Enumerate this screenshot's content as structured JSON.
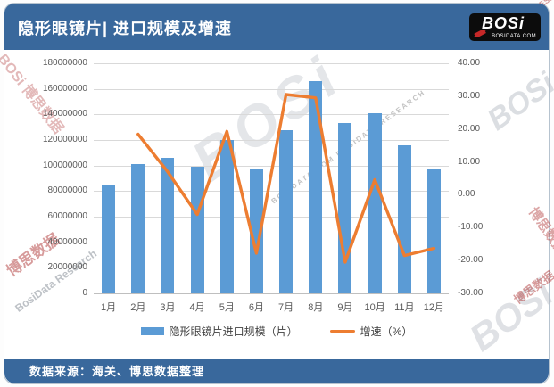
{
  "header": {
    "title": "隐形眼镜片| 进口规模及增速",
    "logo": {
      "brand": "BOSi",
      "domain": "BOSIDATA.COM"
    }
  },
  "chart_data": {
    "type": "bar+line",
    "title": "隐形眼镜片| 进口规模及增速",
    "categories": [
      "1月",
      "2月",
      "3月",
      "4月",
      "5月",
      "6月",
      "7月",
      "8月",
      "9月",
      "10月",
      "11月",
      "12月"
    ],
    "series": [
      {
        "name": "隐形眼镜片进口规模（片）",
        "type": "bar",
        "axis": "left",
        "color": "#5B9BD5",
        "values": [
          85000000,
          101000000,
          106000000,
          99000000,
          120000000,
          98000000,
          128000000,
          166000000,
          133000000,
          141000000,
          116000000,
          98000000
        ]
      },
      {
        "name": "增速（%）",
        "type": "line",
        "axis": "right",
        "color": "#ED7D31",
        "values": [
          null,
          18.4,
          7.0,
          -6.0,
          19.3,
          -17.8,
          30.5,
          29.5,
          -20.5,
          4.6,
          -18.5,
          -16.3
        ]
      }
    ],
    "left_axis": {
      "min": 0,
      "max": 180000000,
      "step": 20000000,
      "ticks": [
        "180000000",
        "160000000",
        "140000000",
        "120000000",
        "100000000",
        "80000000",
        "60000000",
        "40000000",
        "20000000",
        "0"
      ]
    },
    "right_axis": {
      "min": -30,
      "max": 40,
      "step": 10,
      "ticks": [
        "40.00",
        "30.00",
        "20.00",
        "10.00",
        "0.00",
        "-10.00",
        "-20.00",
        "-30.00"
      ]
    },
    "grid": true,
    "legend_position": "bottom"
  },
  "footer": {
    "source": "数据来源：海关、博思数据整理"
  },
  "colors": {
    "header_bg": "#39689C",
    "bar": "#5B9BD5",
    "line": "#ED7D31",
    "grid": "#D9D9D9",
    "axis_text": "#595959"
  },
  "watermarks": [
    {
      "text": "BOSi"
    },
    {
      "text": "BOSIDATA.COM  BOSIDATA RESEARCH"
    },
    {
      "text": "BOSi 博思数据"
    },
    {
      "text": "博思数据"
    },
    {
      "text": "BosiData Research"
    },
    {
      "text": "BOSi"
    },
    {
      "text": "BOSIDATA RESEARCH"
    },
    {
      "text": "博思数据"
    },
    {
      "text": "BOSi"
    },
    {
      "text": "博思数据"
    }
  ]
}
